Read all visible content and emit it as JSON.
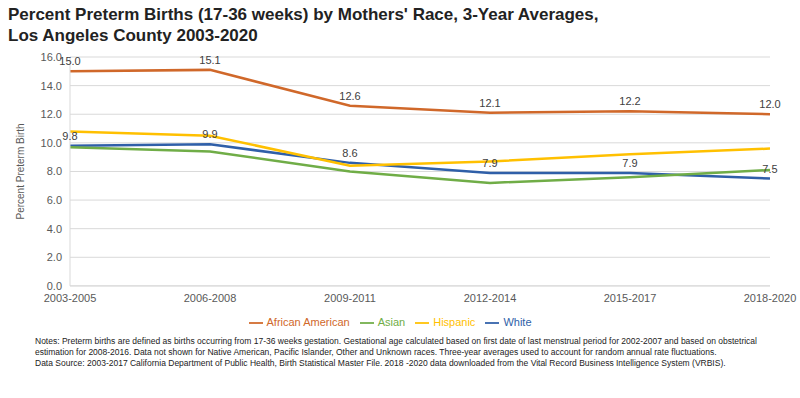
{
  "chart_data": {
    "type": "line",
    "title": [
      "Percent Preterm Births (17-36 weeks) by Mothers' Race, 3-Year Averages,",
      "Los Angeles County 2003-2020"
    ],
    "y_label": "Percent Preterm Birth",
    "categories": [
      "2003-2005",
      "2006-2008",
      "2009-2011",
      "2012-2014",
      "2015-2017",
      "2018-2020"
    ],
    "series": [
      {
        "name": "White",
        "color": "#2f5fa8",
        "values": [
          9.8,
          9.9,
          8.6,
          7.9,
          7.9,
          7.5
        ],
        "data_labels": true,
        "value_labels": [
          "9.8",
          "9.9",
          "8.6",
          "7.9",
          "7.9",
          "7.5"
        ]
      },
      {
        "name": "Hispanic",
        "color": "#ffc000",
        "values": [
          10.8,
          10.5,
          8.4,
          8.7,
          9.2,
          9.6
        ]
      },
      {
        "name": "African American",
        "color": "#d0682a",
        "values": [
          15.0,
          15.1,
          12.6,
          12.1,
          12.2,
          12.0
        ],
        "data_labels": true,
        "value_labels": [
          "15.0",
          "15.1",
          "12.6",
          "12.1",
          "12.2",
          "12.0"
        ]
      },
      {
        "name": "Asian",
        "color": "#70ad47",
        "values": [
          9.7,
          9.4,
          8.0,
          7.2,
          7.6,
          8.1
        ]
      }
    ],
    "ylim": [
      0,
      16
    ],
    "yticks": [
      {
        "value": 0,
        "label": "0.0"
      },
      {
        "value": 2,
        "label": "2.0"
      },
      {
        "value": 4,
        "label": "4.0"
      },
      {
        "value": 6,
        "label": "6.0"
      },
      {
        "value": 8,
        "label": "8.0"
      },
      {
        "value": 10,
        "label": "10.0"
      },
      {
        "value": 12,
        "label": "12.0"
      },
      {
        "value": 14,
        "label": "14.0"
      },
      {
        "value": 16,
        "label": "16.0"
      }
    ],
    "grid": true,
    "legend": "bottom",
    "notes": [
      "Notes: Preterm births are defined as births occurring from 17-36 weeks gestation. Gestational age calculated based on first date of last menstrual period for 2002-2007 and based on obstetrical estimation for 2008-2016. Data not shown for Native American, Pacific Islander, Other and Unknown races. Three-year averages used to account for random annual rate fluctuations.",
      "Data Source: 2003-2017 California Department of Public Health, Birth Statistical Master File. 2018 -2020 data downloaded from the Vital Record Business Intelligence System (VRBIS)."
    ]
  }
}
